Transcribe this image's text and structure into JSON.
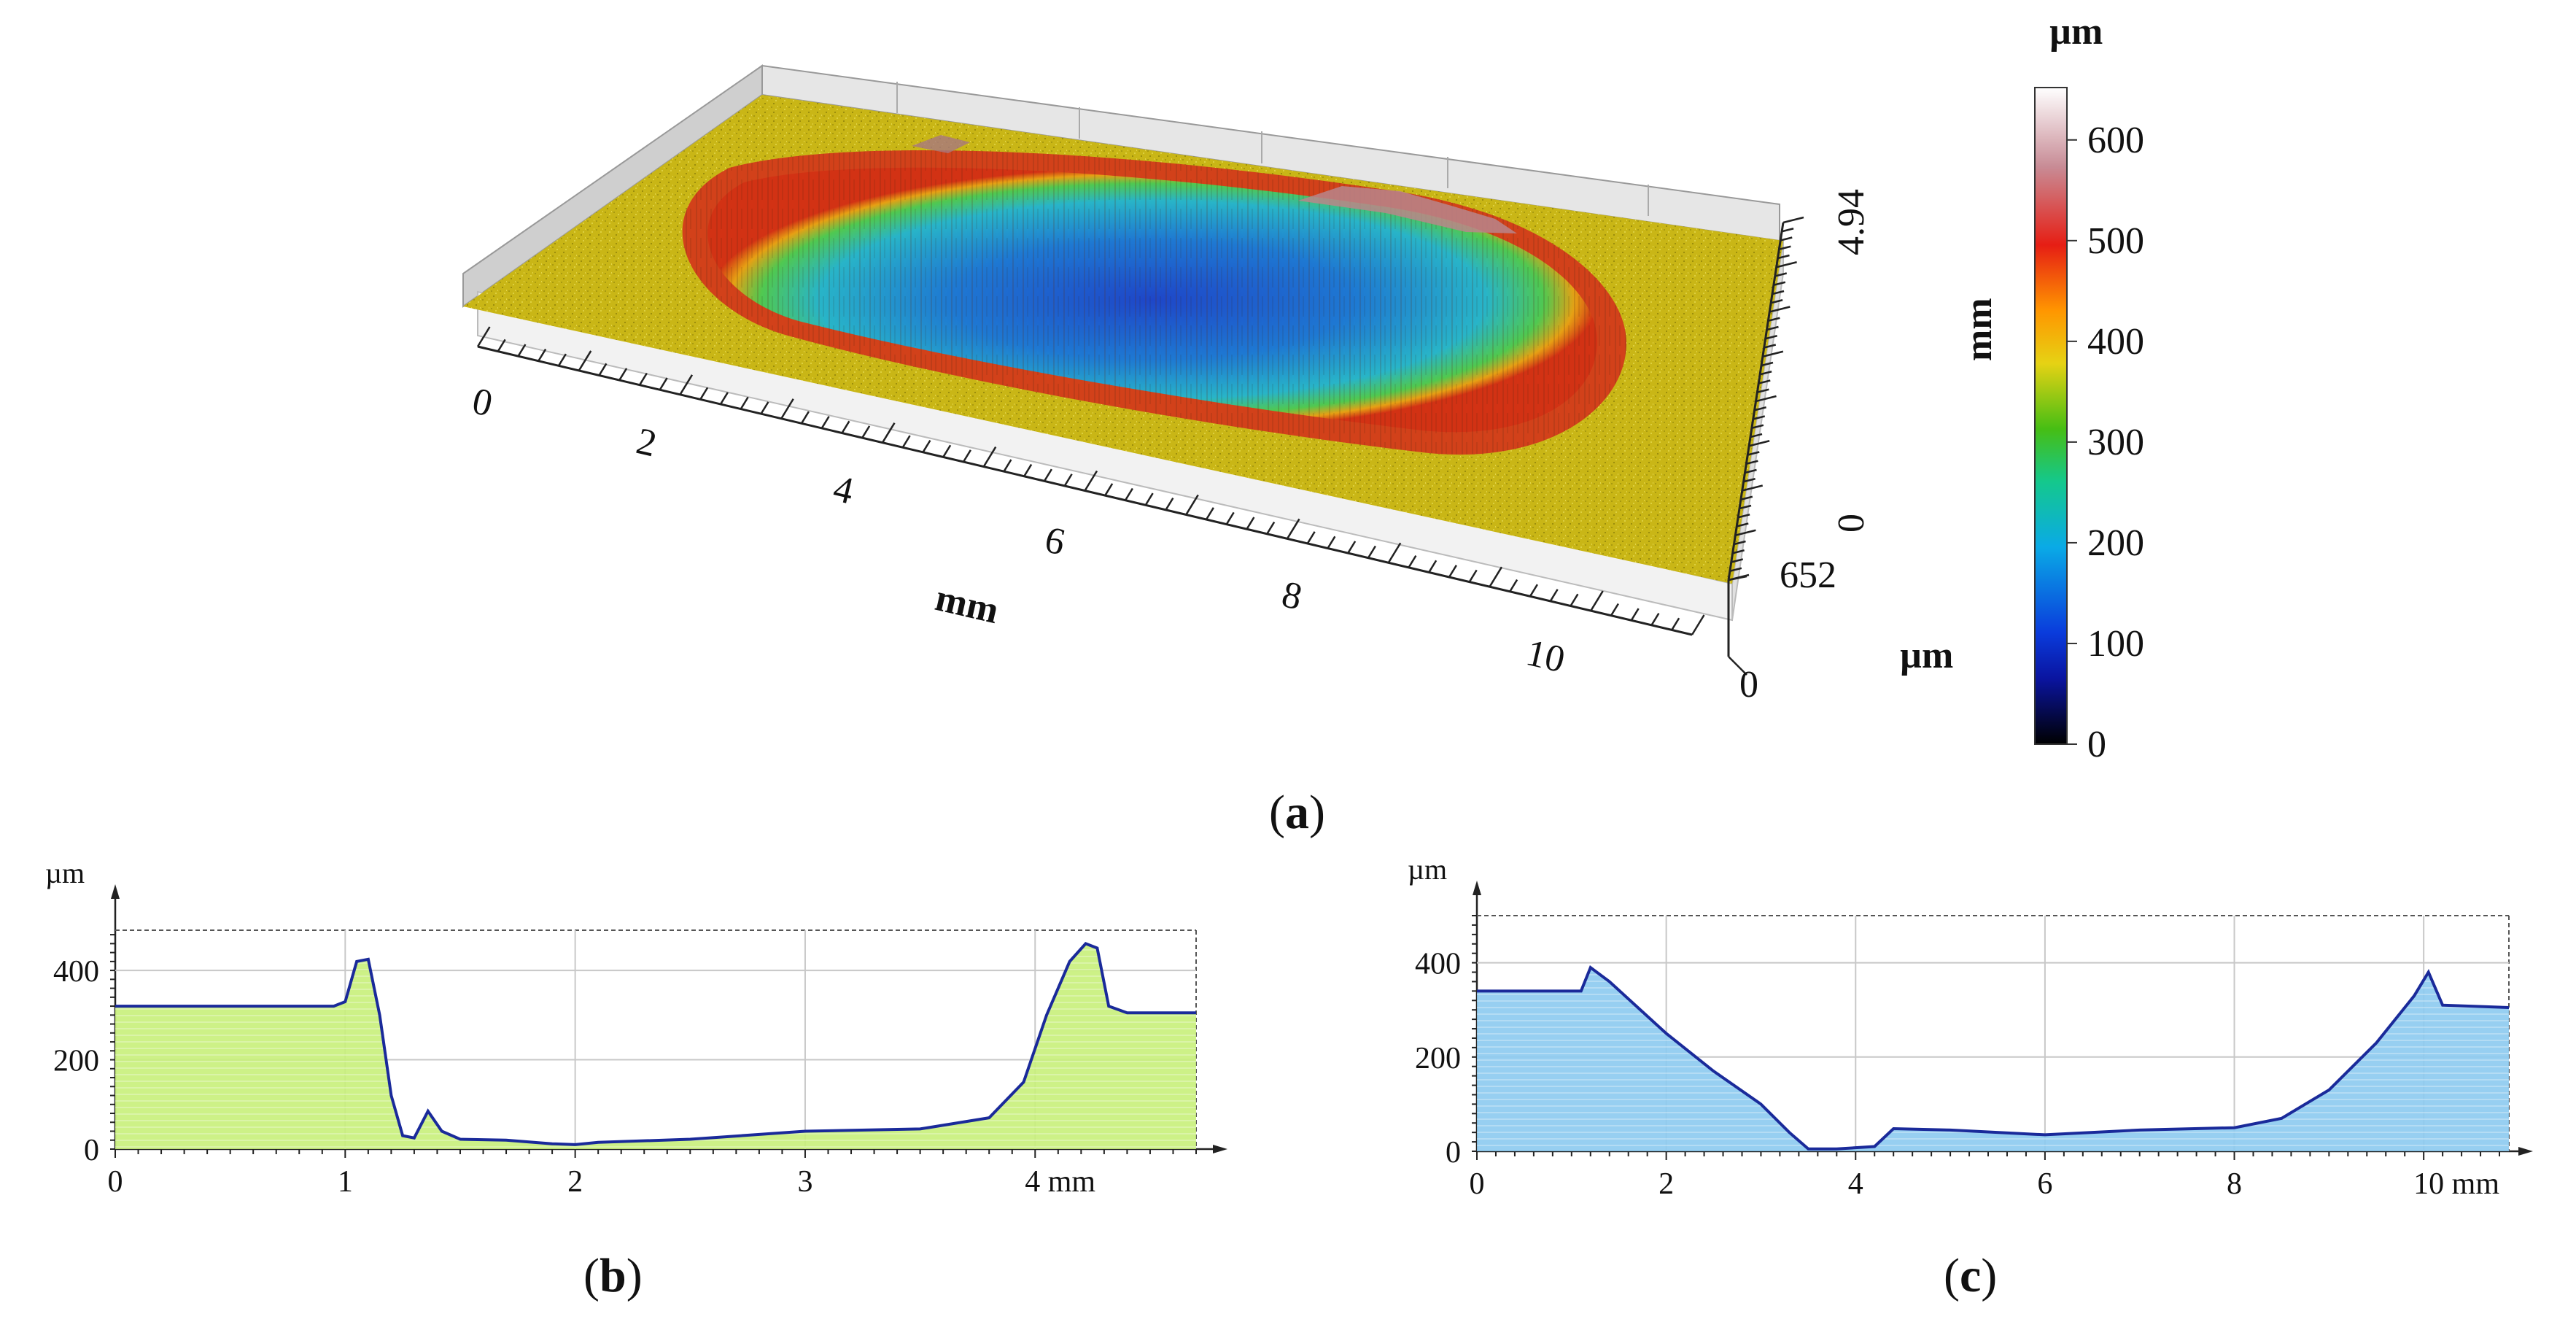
{
  "chart_data": [
    {
      "panel": "a",
      "type": "heatmap",
      "caption": "a",
      "x_axis": {
        "label": "mm",
        "ticks": [
          "0",
          "2",
          "4",
          "6",
          "8",
          "10"
        ]
      },
      "y_axis": {
        "label": "mm",
        "ticks": [
          "4.94",
          "0"
        ]
      },
      "z_axis": {
        "label": "µm",
        "ticks": [
          "652",
          "0"
        ]
      },
      "colorbar": {
        "unit": "µm",
        "ticks": [
          "600",
          "500",
          "400",
          "300",
          "200",
          "100",
          "0"
        ],
        "range": [
          0,
          652
        ],
        "colors": [
          "#000000",
          "#0000c8",
          "#0aa0e6",
          "#14c88c",
          "#3cbe14",
          "#e6d214",
          "#ff8c00",
          "#e61e14",
          "#c8828c",
          "#ffffff"
        ]
      },
      "surface": {
        "plate_level_um": 320,
        "pit_floor_um": 50,
        "rim_um": 520,
        "plate_color": "#c8b414"
      }
    },
    {
      "panel": "b",
      "type": "area",
      "caption": "b",
      "y_unit": "µm",
      "x_unit": "mm",
      "xlim": [
        0,
        4.7
      ],
      "ylim": [
        0,
        490
      ],
      "x_ticks": [
        0,
        1,
        2,
        3,
        4
      ],
      "x_tick_labels": [
        "0",
        "1",
        "2",
        "3",
        "4 mm"
      ],
      "y_ticks": [
        0,
        200,
        400
      ],
      "y_tick_labels": [
        "0",
        "200",
        "400"
      ],
      "fill_color": "#c8f07a",
      "line_color": "#1a2a9a",
      "x": [
        0,
        0.95,
        1.0,
        1.05,
        1.1,
        1.15,
        1.2,
        1.25,
        1.3,
        1.36,
        1.42,
        1.5,
        1.7,
        1.9,
        2.0,
        2.1,
        2.5,
        3.0,
        3.5,
        3.8,
        3.95,
        4.05,
        4.15,
        4.22,
        4.27,
        4.32,
        4.4,
        4.7
      ],
      "y": [
        320,
        320,
        330,
        420,
        425,
        300,
        120,
        30,
        25,
        85,
        40,
        22,
        20,
        12,
        10,
        15,
        22,
        40,
        45,
        70,
        150,
        300,
        420,
        460,
        450,
        320,
        305,
        305
      ]
    },
    {
      "panel": "c",
      "type": "area",
      "caption": "c",
      "y_unit": "µm",
      "x_unit": "mm",
      "xlim": [
        0,
        10.9
      ],
      "ylim": [
        0,
        500
      ],
      "x_ticks": [
        0,
        2,
        4,
        6,
        8,
        10
      ],
      "x_tick_labels": [
        "0",
        "2",
        "4",
        "6",
        "8",
        "10 mm"
      ],
      "y_ticks": [
        0,
        200,
        400
      ],
      "y_tick_labels": [
        "0",
        "200",
        "400"
      ],
      "fill_color": "#8ccaf0",
      "line_color": "#1a2a9a",
      "x": [
        0,
        1.1,
        1.2,
        1.4,
        2.0,
        2.5,
        3.0,
        3.3,
        3.5,
        3.8,
        4.2,
        4.4,
        5.0,
        6.0,
        7.0,
        8.0,
        8.5,
        9.0,
        9.5,
        9.9,
        10.05,
        10.2,
        10.9
      ],
      "y": [
        340,
        340,
        390,
        360,
        250,
        170,
        100,
        40,
        5,
        5,
        10,
        48,
        45,
        35,
        45,
        50,
        70,
        130,
        230,
        330,
        380,
        310,
        305
      ]
    }
  ]
}
